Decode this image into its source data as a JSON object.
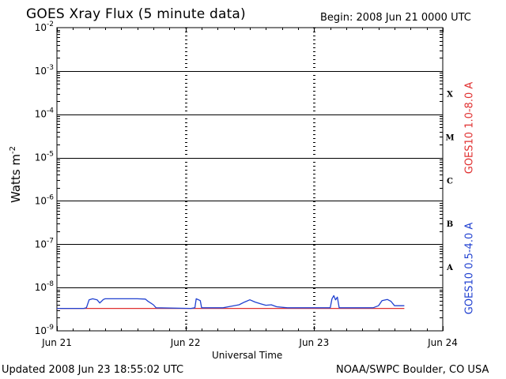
{
  "header": {
    "title": "GOES Xray Flux (5 minute data)",
    "begin": "Begin:  2008 Jun 21 0000 UTC"
  },
  "footer": {
    "updated": "Updated 2008 Jun 23 18:55:02 UTC",
    "source": "NOAA/SWPC Boulder, CO USA"
  },
  "colors": {
    "series_long": "#e03030",
    "series_short": "#2040d0",
    "axis": "#000000"
  },
  "chart_data": {
    "type": "line",
    "title": "GOES Xray Flux (5 minute data)",
    "xlabel": "Universal Time",
    "ylabel_base": "Watts m",
    "ylabel_exp": "-2",
    "yscale": "log",
    "ylim": [
      1e-09,
      0.01
    ],
    "xlim": [
      "2008-06-21",
      "2008-06-24"
    ],
    "grid": "horizontal at each decade; dotted vertical at day boundaries",
    "x_ticks": [
      {
        "x": "2008-06-21",
        "label": "Jun 21"
      },
      {
        "x": "2008-06-22",
        "label": "Jun 22"
      },
      {
        "x": "2008-06-23",
        "label": "Jun 23"
      },
      {
        "x": "2008-06-24",
        "label": "Jun 24"
      }
    ],
    "y_ticks": [
      {
        "value": 1e-09,
        "base": "10",
        "exp": "-9"
      },
      {
        "value": 1e-08,
        "base": "10",
        "exp": "-8"
      },
      {
        "value": 1e-07,
        "base": "10",
        "exp": "-7"
      },
      {
        "value": 1e-06,
        "base": "10",
        "exp": "-6"
      },
      {
        "value": 1e-05,
        "base": "10",
        "exp": "-5"
      },
      {
        "value": 0.0001,
        "base": "10",
        "exp": "-4"
      },
      {
        "value": 0.001,
        "base": "10",
        "exp": "-3"
      },
      {
        "value": 0.01,
        "base": "10",
        "exp": "-2"
      }
    ],
    "flare_classes": [
      {
        "label": "X",
        "value": 0.0003
      },
      {
        "label": "M",
        "value": 3e-05
      },
      {
        "label": "C",
        "value": 3e-06
      },
      {
        "label": "B",
        "value": 3e-07
      },
      {
        "label": "A",
        "value": 3e-08
      }
    ],
    "series": [
      {
        "name": "GOES10 0.5-4.0 A",
        "color": "#2040d0",
        "points": [
          [
            "2008-06-21T00:00",
            3.3e-09
          ],
          [
            "2008-06-21T05:00",
            3.3e-09
          ],
          [
            "2008-06-21T05:30",
            3.4e-09
          ],
          [
            "2008-06-21T06:00",
            5.2e-09
          ],
          [
            "2008-06-21T06:40",
            5.5e-09
          ],
          [
            "2008-06-21T07:30",
            5.2e-09
          ],
          [
            "2008-06-21T08:00",
            4.4e-09
          ],
          [
            "2008-06-21T08:40",
            5.3e-09
          ],
          [
            "2008-06-21T09:00",
            5.5e-09
          ],
          [
            "2008-06-21T12:00",
            5.5e-09
          ],
          [
            "2008-06-21T15:00",
            5.5e-09
          ],
          [
            "2008-06-21T16:30",
            5.4e-09
          ],
          [
            "2008-06-21T17:00",
            4.8e-09
          ],
          [
            "2008-06-21T18:00",
            4e-09
          ],
          [
            "2008-06-21T18:30",
            3.4e-09
          ],
          [
            "2008-06-22T01:00",
            3.3e-09
          ],
          [
            "2008-06-22T01:45",
            3.4e-09
          ],
          [
            "2008-06-22T02:00",
            5.5e-09
          ],
          [
            "2008-06-22T02:45",
            5e-09
          ],
          [
            "2008-06-22T03:00",
            3.4e-09
          ],
          [
            "2008-06-22T07:00",
            3.4e-09
          ],
          [
            "2008-06-22T08:00",
            3.6e-09
          ],
          [
            "2008-06-22T10:00",
            4e-09
          ],
          [
            "2008-06-22T11:00",
            4.6e-09
          ],
          [
            "2008-06-22T12:00",
            5.2e-09
          ],
          [
            "2008-06-22T13:00",
            4.6e-09
          ],
          [
            "2008-06-22T14:00",
            4.2e-09
          ],
          [
            "2008-06-22T15:00",
            3.9e-09
          ],
          [
            "2008-06-22T16:00",
            4e-09
          ],
          [
            "2008-06-22T17:00",
            3.6e-09
          ],
          [
            "2008-06-22T19:00",
            3.4e-09
          ],
          [
            "2008-06-23T03:00",
            3.4e-09
          ],
          [
            "2008-06-23T03:20",
            5.5e-09
          ],
          [
            "2008-06-23T03:40",
            6.5e-09
          ],
          [
            "2008-06-23T04:00",
            5.2e-09
          ],
          [
            "2008-06-23T04:20",
            6e-09
          ],
          [
            "2008-06-23T04:40",
            3.4e-09
          ],
          [
            "2008-06-23T11:00",
            3.4e-09
          ],
          [
            "2008-06-23T12:00",
            3.8e-09
          ],
          [
            "2008-06-23T12:40",
            5e-09
          ],
          [
            "2008-06-23T13:40",
            5.3e-09
          ],
          [
            "2008-06-23T14:20",
            4.8e-09
          ],
          [
            "2008-06-23T15:00",
            3.8e-09
          ],
          [
            "2008-06-23T16:00",
            3.8e-09
          ],
          [
            "2008-06-23T16:50",
            3.8e-09
          ]
        ]
      },
      {
        "name": "GOES10 1.0-8.0 A",
        "color": "#e03030",
        "points": [
          [
            "2008-06-21T00:00",
            3.3e-09
          ],
          [
            "2008-06-22T00:00",
            3.3e-09
          ],
          [
            "2008-06-23T00:00",
            3.3e-09
          ],
          [
            "2008-06-23T16:50",
            3.3e-09
          ]
        ]
      }
    ]
  }
}
